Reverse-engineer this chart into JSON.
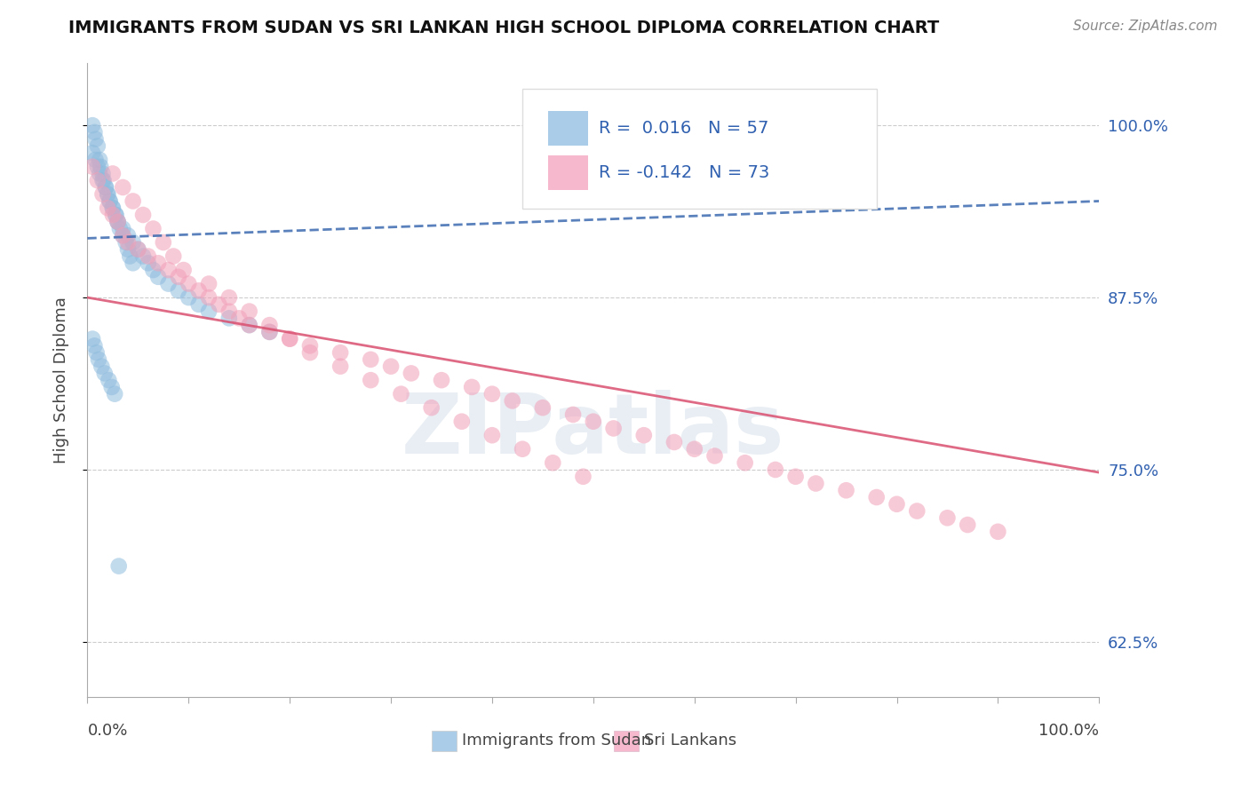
{
  "title": "IMMIGRANTS FROM SUDAN VS SRI LANKAN HIGH SCHOOL DIPLOMA CORRELATION CHART",
  "source_text": "Source: ZipAtlas.com",
  "ylabel": "High School Diploma",
  "ytick_labels": [
    "62.5%",
    "75.0%",
    "87.5%",
    "100.0%"
  ],
  "ytick_values": [
    0.625,
    0.75,
    0.875,
    1.0
  ],
  "xlim": [
    0.0,
    1.0
  ],
  "ylim": [
    0.585,
    1.045
  ],
  "blue_scatter_x": [
    0.005,
    0.007,
    0.008,
    0.01,
    0.012,
    0.013,
    0.015,
    0.016,
    0.018,
    0.02,
    0.022,
    0.025,
    0.028,
    0.03,
    0.032,
    0.035,
    0.038,
    0.04,
    0.042,
    0.045,
    0.005,
    0.008,
    0.01,
    0.012,
    0.015,
    0.018,
    0.02,
    0.022,
    0.025,
    0.028,
    0.03,
    0.035,
    0.04,
    0.045,
    0.05,
    0.055,
    0.06,
    0.065,
    0.07,
    0.08,
    0.09,
    0.1,
    0.11,
    0.12,
    0.14,
    0.16,
    0.18,
    0.005,
    0.007,
    0.009,
    0.011,
    0.014,
    0.017,
    0.021,
    0.024,
    0.027,
    0.031
  ],
  "blue_scatter_y": [
    1.0,
    0.995,
    0.99,
    0.985,
    0.975,
    0.97,
    0.965,
    0.96,
    0.955,
    0.95,
    0.945,
    0.94,
    0.935,
    0.93,
    0.925,
    0.92,
    0.915,
    0.91,
    0.905,
    0.9,
    0.98,
    0.975,
    0.97,
    0.965,
    0.96,
    0.955,
    0.95,
    0.945,
    0.94,
    0.935,
    0.93,
    0.925,
    0.92,
    0.915,
    0.91,
    0.905,
    0.9,
    0.895,
    0.89,
    0.885,
    0.88,
    0.875,
    0.87,
    0.865,
    0.86,
    0.855,
    0.85,
    0.845,
    0.84,
    0.835,
    0.83,
    0.825,
    0.82,
    0.815,
    0.81,
    0.805,
    0.68
  ],
  "pink_scatter_x": [
    0.005,
    0.01,
    0.015,
    0.02,
    0.025,
    0.03,
    0.035,
    0.04,
    0.05,
    0.06,
    0.07,
    0.08,
    0.09,
    0.1,
    0.11,
    0.12,
    0.13,
    0.14,
    0.15,
    0.16,
    0.18,
    0.2,
    0.22,
    0.25,
    0.28,
    0.3,
    0.32,
    0.35,
    0.38,
    0.4,
    0.42,
    0.45,
    0.48,
    0.5,
    0.52,
    0.55,
    0.58,
    0.6,
    0.62,
    0.65,
    0.68,
    0.7,
    0.72,
    0.75,
    0.78,
    0.8,
    0.82,
    0.85,
    0.87,
    0.9,
    0.025,
    0.035,
    0.045,
    0.055,
    0.065,
    0.075,
    0.085,
    0.095,
    0.12,
    0.14,
    0.16,
    0.18,
    0.2,
    0.22,
    0.25,
    0.28,
    0.31,
    0.34,
    0.37,
    0.4,
    0.43,
    0.46,
    0.49
  ],
  "pink_scatter_y": [
    0.97,
    0.96,
    0.95,
    0.94,
    0.935,
    0.93,
    0.92,
    0.915,
    0.91,
    0.905,
    0.9,
    0.895,
    0.89,
    0.885,
    0.88,
    0.875,
    0.87,
    0.865,
    0.86,
    0.855,
    0.85,
    0.845,
    0.84,
    0.835,
    0.83,
    0.825,
    0.82,
    0.815,
    0.81,
    0.805,
    0.8,
    0.795,
    0.79,
    0.785,
    0.78,
    0.775,
    0.77,
    0.765,
    0.76,
    0.755,
    0.75,
    0.745,
    0.74,
    0.735,
    0.73,
    0.725,
    0.72,
    0.715,
    0.71,
    0.705,
    0.965,
    0.955,
    0.945,
    0.935,
    0.925,
    0.915,
    0.905,
    0.895,
    0.885,
    0.875,
    0.865,
    0.855,
    0.845,
    0.835,
    0.825,
    0.815,
    0.805,
    0.795,
    0.785,
    0.775,
    0.765,
    0.755,
    0.745
  ],
  "blue_line_x": [
    0.0,
    1.0
  ],
  "blue_line_y_start": 0.918,
  "blue_line_y_end": 0.945,
  "pink_line_x": [
    0.0,
    1.0
  ],
  "pink_line_y_start": 0.875,
  "pink_line_y_end": 0.748,
  "blue_scatter_color": "#8fbcde",
  "pink_scatter_color": "#f2a0b8",
  "blue_line_color": "#3d6baf",
  "pink_line_color": "#d95070",
  "watermark_text": "ZIPatlas",
  "bottom_legend_labels": [
    "Immigrants from Sudan",
    "Sri Lankans"
  ],
  "bottom_legend_colors": [
    "#aacce8",
    "#f5b8cc"
  ],
  "legend_blue_text": "R =  0.016   N = 57",
  "legend_pink_text": "R = -0.142   N = 73",
  "legend_text_color": "#3060b0"
}
